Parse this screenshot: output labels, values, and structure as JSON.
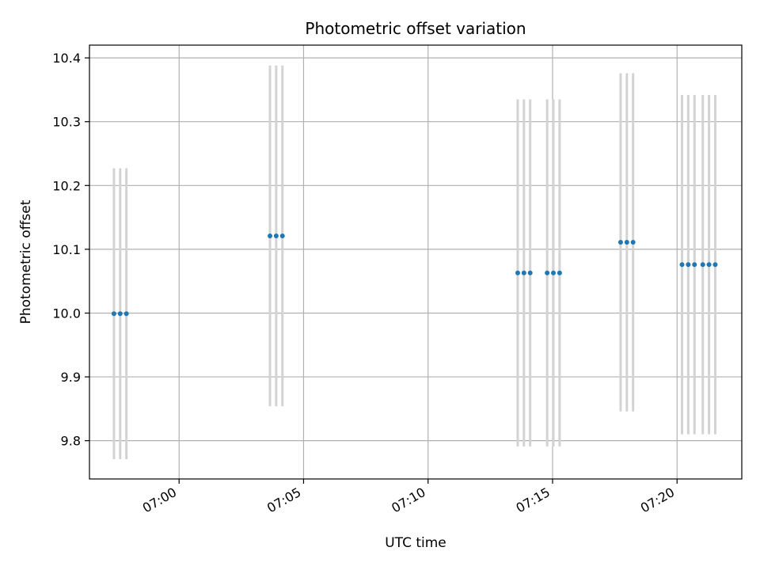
{
  "chart_data": {
    "type": "scatter",
    "title": "Photometric offset variation",
    "xlabel": "UTC time",
    "ylabel": "Photometric offset",
    "x_tick_labels": [
      "07:00",
      "07:05",
      "07:10",
      "07:15",
      "07:20"
    ],
    "x_ticks_min": [
      0,
      5,
      10,
      15,
      20
    ],
    "xlim_min_after_0700": [
      -3.6,
      22.6
    ],
    "ylim": [
      9.74,
      10.42
    ],
    "y_ticks": [
      9.8,
      9.9,
      10.0,
      10.1,
      10.2,
      10.3,
      10.4
    ],
    "y_tick_labels": [
      "9.8",
      "9.9",
      "10.0",
      "10.1",
      "10.2",
      "10.3",
      "10.4"
    ],
    "grid": true,
    "colors": {
      "points": "#1f77b4",
      "errorbars": "#d3d3d3",
      "grid": "#b0b0b0"
    },
    "series": [
      {
        "groups": [
          {
            "times": [
              "06:57:23",
              "06:57:38",
              "06:57:53"
            ],
            "value": 9.999,
            "yerr": 0.228
          },
          {
            "times": [
              "07:03:39",
              "07:03:54",
              "07:04:09"
            ],
            "value": 10.121,
            "yerr": 0.267
          },
          {
            "times": [
              "07:13:36",
              "07:13:51",
              "07:14:06"
            ],
            "value": 10.063,
            "yerr": 0.272
          },
          {
            "times": [
              "07:14:47",
              "07:15:02",
              "07:15:17"
            ],
            "value": 10.063,
            "yerr": 0.272
          },
          {
            "times": [
              "07:17:44",
              "07:17:59",
              "07:18:14"
            ],
            "value": 10.111,
            "yerr": 0.265
          },
          {
            "times": [
              "07:20:12",
              "07:20:27",
              "07:20:42"
            ],
            "value": 10.076,
            "yerr": 0.266
          },
          {
            "times": [
              "07:21:02",
              "07:21:17",
              "07:21:32"
            ],
            "value": 10.076,
            "yerr": 0.266
          }
        ]
      }
    ]
  }
}
